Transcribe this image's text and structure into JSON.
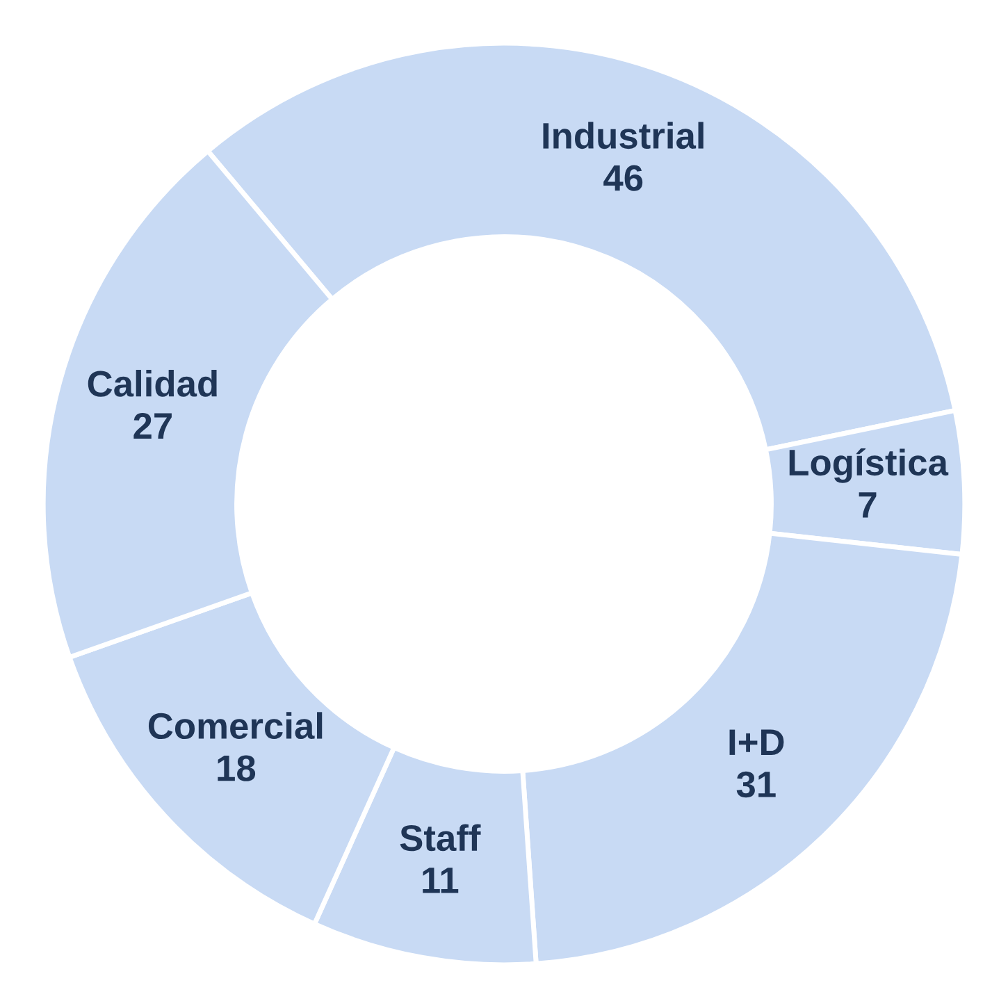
{
  "chart_data": {
    "type": "donut",
    "categories": [
      "Industrial",
      "Logística",
      "I+D",
      "Staff",
      "Comercial",
      "Calidad"
    ],
    "values": [
      46,
      7,
      31,
      11,
      18,
      27
    ],
    "colors": [
      "#c8daf4",
      "#c8daf4",
      "#c8daf4",
      "#c8daf4",
      "#c8daf4",
      "#c8daf4"
    ],
    "data_labels": true,
    "legend": false
  }
}
